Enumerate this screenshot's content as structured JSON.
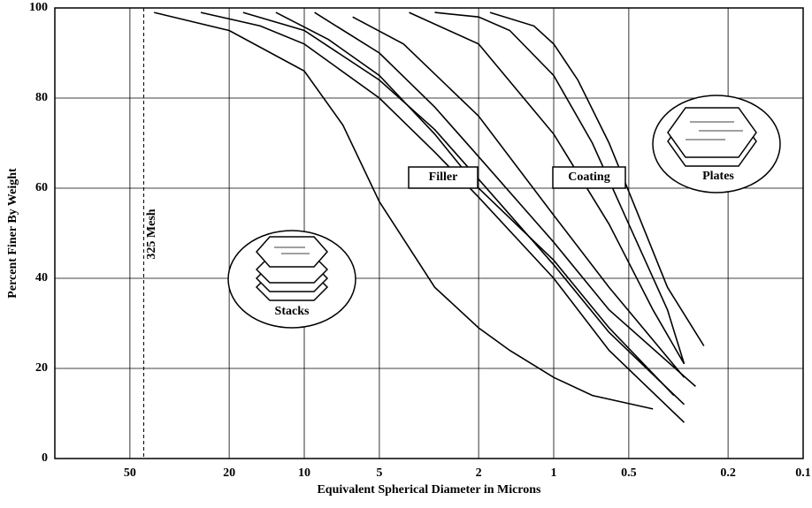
{
  "chart_data": {
    "type": "line",
    "xlabel": "Equivalent Spherical Diameter in Microns",
    "ylabel": "Percent Finer By Weight",
    "xscale": "log",
    "xlim": [
      100,
      0.1
    ],
    "xticks": [
      50,
      20,
      10,
      5,
      2,
      1,
      0.5,
      0.2,
      0.1
    ],
    "ylim": [
      0,
      100
    ],
    "yticks": [
      0,
      20,
      40,
      60,
      80,
      100
    ],
    "grid": true,
    "mesh_line": {
      "x": 44,
      "label": "325 Mesh"
    },
    "annotations": [
      "Filler",
      "Coating",
      "Plates",
      "Stacks"
    ],
    "series": [
      {
        "color": "#000000",
        "x": [
          40,
          20,
          10,
          7,
          5,
          3,
          2,
          1.5,
          1,
          0.7,
          0.4
        ],
        "values": [
          99,
          95,
          86,
          74,
          57,
          38,
          29,
          24,
          18,
          14,
          11
        ]
      },
      {
        "color": "#000000",
        "x": [
          26,
          15,
          10,
          5,
          3,
          2,
          1,
          0.6,
          0.3
        ],
        "values": [
          99,
          96,
          92,
          80,
          68,
          58,
          40,
          24,
          8
        ]
      },
      {
        "color": "#000000",
        "x": [
          17.6,
          10,
          5,
          3,
          2,
          1,
          0.6,
          0.3
        ],
        "values": [
          99,
          95,
          84,
          73,
          62,
          43,
          28,
          12
        ]
      },
      {
        "color": "#000000",
        "x": [
          13,
          8,
          5,
          3,
          2,
          1,
          0.6,
          0.33
        ],
        "values": [
          99,
          93,
          85,
          72,
          60,
          44,
          29,
          14
        ]
      },
      {
        "color": "#000000",
        "x": [
          9.1,
          5,
          3,
          2,
          1,
          0.6,
          0.27
        ],
        "values": [
          99,
          90,
          78,
          67,
          48,
          33,
          16
        ]
      },
      {
        "color": "#000000",
        "x": [
          6.4,
          4,
          2,
          1,
          0.6,
          0.3
        ],
        "values": [
          98,
          92,
          76,
          54,
          38,
          18
        ]
      },
      {
        "color": "#000000",
        "x": [
          3.8,
          2,
          1,
          0.6,
          0.4,
          0.3
        ],
        "values": [
          99,
          92,
          72,
          52,
          33,
          21
        ]
      },
      {
        "color": "#000000",
        "x": [
          3,
          2,
          1.5,
          1,
          0.7,
          0.5,
          0.35,
          0.3
        ],
        "values": [
          99,
          98,
          95,
          85,
          70,
          52,
          33,
          21
        ]
      },
      {
        "color": "#000000",
        "x": [
          1.8,
          1.2,
          1,
          0.8,
          0.6,
          0.45,
          0.35,
          0.25
        ],
        "values": [
          99,
          96,
          92,
          84,
          70,
          53,
          38,
          25
        ]
      }
    ]
  }
}
